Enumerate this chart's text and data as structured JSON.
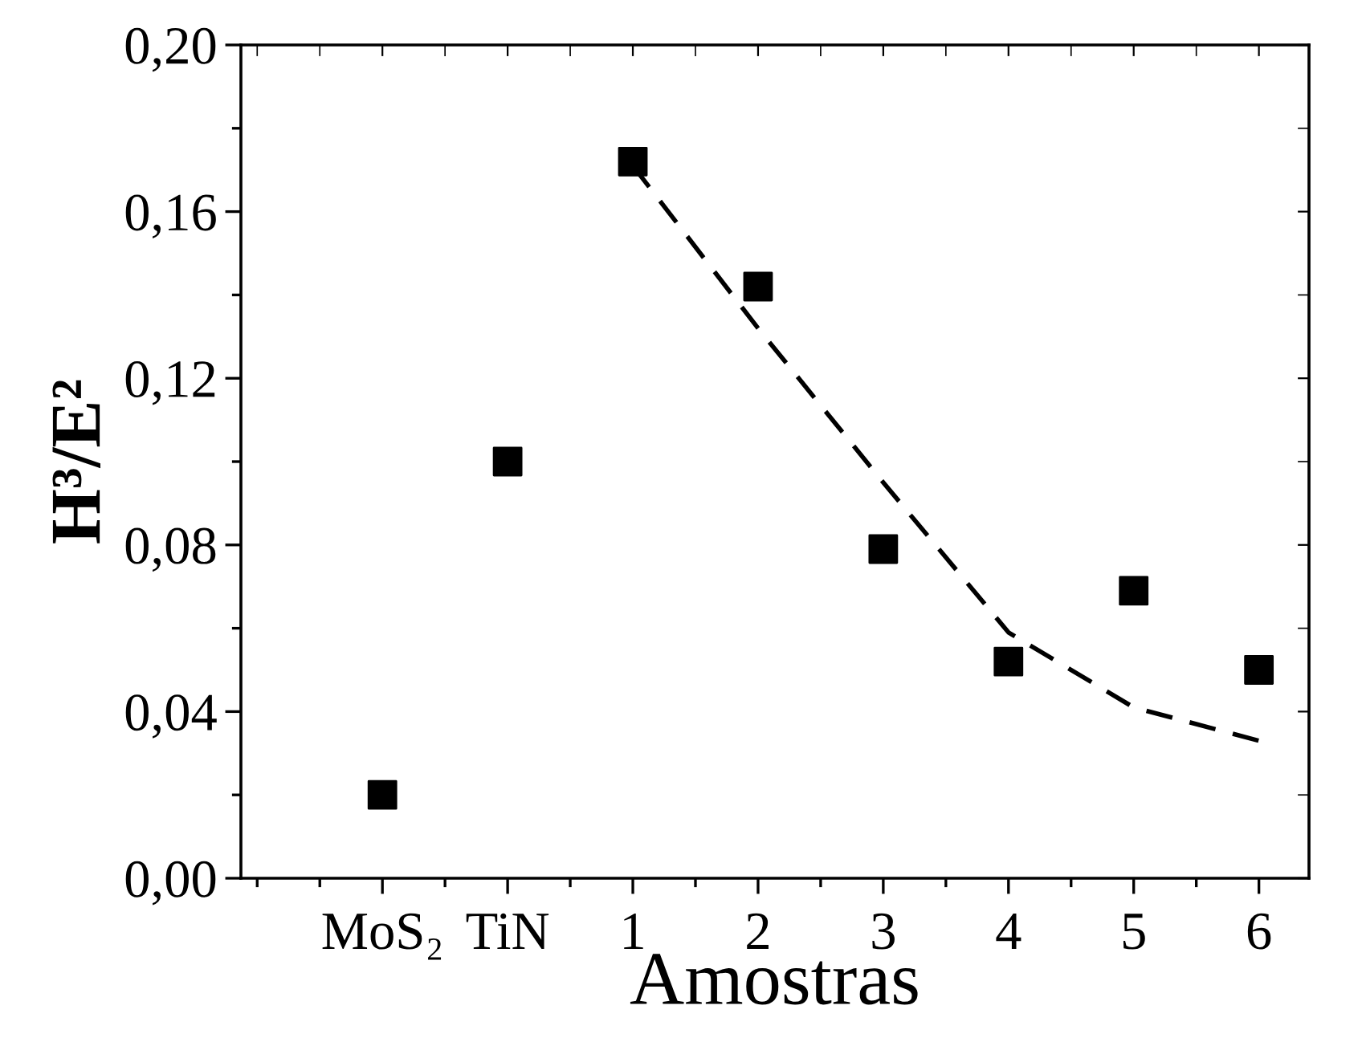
{
  "chart_data": {
    "type": "scatter",
    "xlabel": "Amostras",
    "ylabel": "H³/E²",
    "categories": [
      "MoS₂",
      "TiN",
      "1",
      "2",
      "3",
      "4",
      "5",
      "6"
    ],
    "series": [
      {
        "color": "#000000",
        "marker": "square",
        "values": [
          0.02,
          0.1,
          0.172,
          0.142,
          0.079,
          0.052,
          0.069,
          0.05
        ]
      },
      {
        "type": "line",
        "color": "#000000",
        "marker": "none",
        "line_style": "dashed",
        "x": [
          "1",
          "2",
          "3",
          "4",
          "5",
          "6"
        ],
        "values": [
          0.171,
          0.132,
          0.095,
          0.059,
          0.041,
          0.033
        ]
      }
    ],
    "ylim": [
      0,
      0.2
    ],
    "yticks": [
      {
        "value": 0,
        "label": "0,00"
      },
      {
        "value": 0.04,
        "label": "0,04"
      },
      {
        "value": 0.08,
        "label": "0,08"
      },
      {
        "value": 0.12,
        "label": "0,12"
      },
      {
        "value": 0.16,
        "label": "0,16"
      },
      {
        "value": 0.2,
        "label": "0,20"
      }
    ],
    "grid": false,
    "legend": false
  }
}
